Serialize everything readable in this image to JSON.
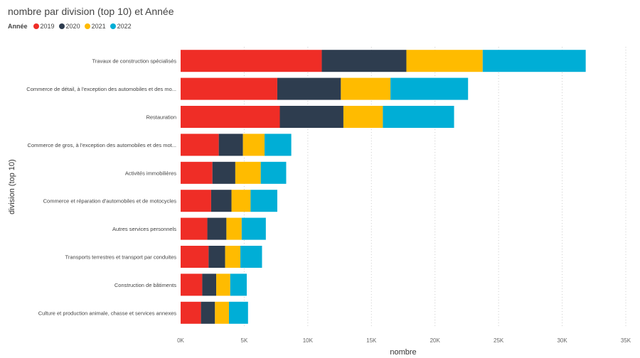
{
  "chart_data": {
    "type": "bar",
    "orientation": "horizontal",
    "stacked": true,
    "title": "nombre par division (top 10) et Année",
    "legend_title": "Année",
    "legend_position": "top-left",
    "xlabel": "nombre",
    "ylabel": "division (top 10)",
    "xlim": [
      0,
      35000
    ],
    "xticks": [
      "0K",
      "5K",
      "10K",
      "15K",
      "20K",
      "25K",
      "30K",
      "35K"
    ],
    "categories": [
      "Travaux de construction spécialisés",
      "Commerce de détail, à l'exception des automobiles et des mo...",
      "Restauration",
      "Commerce de gros, à l'exception des automobiles et des mot...",
      "Activités immobilières",
      "Commerce et réparation d'automobiles et de motocycles",
      "Autres services personnels",
      "Transports terrestres et transport par conduites",
      "Construction de bâtiments",
      "Culture et production animale, chasse et services annexes"
    ],
    "series": [
      {
        "name": "2019",
        "color": "#EF2D26",
        "values": [
          11100,
          7600,
          7800,
          3000,
          2500,
          2400,
          2100,
          2200,
          1700,
          1600
        ]
      },
      {
        "name": "2020",
        "color": "#2E3D4F",
        "values": [
          6650,
          5000,
          5000,
          1900,
          1800,
          1600,
          1500,
          1300,
          1100,
          1100
        ]
      },
      {
        "name": "2021",
        "color": "#FFBB00",
        "values": [
          6000,
          3900,
          3100,
          1700,
          2000,
          1500,
          1200,
          1200,
          1100,
          1100
        ]
      },
      {
        "name": "2022",
        "color": "#00AED6",
        "values": [
          8100,
          6100,
          5600,
          2100,
          2000,
          2100,
          1900,
          1700,
          1300,
          1500
        ]
      }
    ]
  }
}
